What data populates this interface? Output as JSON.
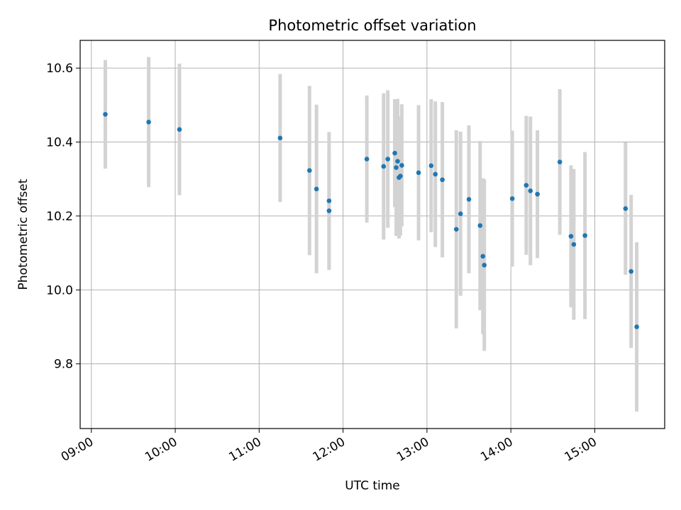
{
  "chart_data": {
    "type": "scatter",
    "title": "Photometric offset variation",
    "xlabel": "UTC time",
    "ylabel": "Photometric offset",
    "grid": true,
    "legend": "none",
    "x_format": "HH:MM",
    "xlim": [
      "08:52",
      "15:50"
    ],
    "ylim": [
      9.625,
      10.675
    ],
    "x_ticks": [
      "09:00",
      "10:00",
      "11:00",
      "12:00",
      "13:00",
      "14:00",
      "15:00"
    ],
    "y_ticks": [
      9.8,
      10.0,
      10.2,
      10.4,
      10.6
    ],
    "y_tick_labels": [
      "9.8",
      "10.0",
      "10.2",
      "10.4",
      "10.6"
    ],
    "series": [
      {
        "color": "#1f77b4",
        "errorbar_color": "#d3d3d3",
        "points": [
          {
            "x": "09:10",
            "y": 10.475,
            "err": 0.147
          },
          {
            "x": "09:41",
            "y": 10.454,
            "err": 0.176
          },
          {
            "x": "10:03",
            "y": 10.434,
            "err": 0.178
          },
          {
            "x": "11:15",
            "y": 10.411,
            "err": 0.173
          },
          {
            "x": "11:36",
            "y": 10.323,
            "err": 0.229
          },
          {
            "x": "11:41",
            "y": 10.273,
            "err": 0.228
          },
          {
            "x": "11:50",
            "y": 10.241,
            "err": 0.186
          },
          {
            "x": "11:50",
            "y": 10.214,
            "err": 0.16
          },
          {
            "x": "12:17",
            "y": 10.354,
            "err": 0.172
          },
          {
            "x": "12:29",
            "y": 10.334,
            "err": 0.198
          },
          {
            "x": "12:32",
            "y": 10.354,
            "err": 0.186
          },
          {
            "x": "12:37",
            "y": 10.37,
            "err": 0.146
          },
          {
            "x": "12:38",
            "y": 10.331,
            "err": 0.185
          },
          {
            "x": "12:39",
            "y": 10.348,
            "err": 0.169
          },
          {
            "x": "12:40",
            "y": 10.304,
            "err": 0.165
          },
          {
            "x": "12:41",
            "y": 10.308,
            "err": 0.161
          },
          {
            "x": "12:42",
            "y": 10.337,
            "err": 0.165
          },
          {
            "x": "12:54",
            "y": 10.317,
            "err": 0.183
          },
          {
            "x": "13:03",
            "y": 10.336,
            "err": 0.18
          },
          {
            "x": "13:06",
            "y": 10.313,
            "err": 0.197
          },
          {
            "x": "13:11",
            "y": 10.298,
            "err": 0.21
          },
          {
            "x": "13:21",
            "y": 10.164,
            "err": 0.268
          },
          {
            "x": "13:24",
            "y": 10.206,
            "err": 0.222
          },
          {
            "x": "13:30",
            "y": 10.245,
            "err": 0.2
          },
          {
            "x": "13:38",
            "y": 10.174,
            "err": 0.229
          },
          {
            "x": "13:40",
            "y": 10.091,
            "err": 0.211
          },
          {
            "x": "13:41",
            "y": 10.067,
            "err": 0.232
          },
          {
            "x": "14:01",
            "y": 10.247,
            "err": 0.184
          },
          {
            "x": "14:11",
            "y": 10.283,
            "err": 0.188
          },
          {
            "x": "14:14",
            "y": 10.268,
            "err": 0.201
          },
          {
            "x": "14:19",
            "y": 10.259,
            "err": 0.173
          },
          {
            "x": "14:35",
            "y": 10.346,
            "err": 0.197
          },
          {
            "x": "14:43",
            "y": 10.145,
            "err": 0.192
          },
          {
            "x": "14:45",
            "y": 10.123,
            "err": 0.204
          },
          {
            "x": "14:53",
            "y": 10.147,
            "err": 0.226
          },
          {
            "x": "15:22",
            "y": 10.22,
            "err": 0.179
          },
          {
            "x": "15:26",
            "y": 10.05,
            "err": 0.207
          },
          {
            "x": "15:30",
            "y": 9.9,
            "err": 0.229
          }
        ]
      }
    ]
  }
}
